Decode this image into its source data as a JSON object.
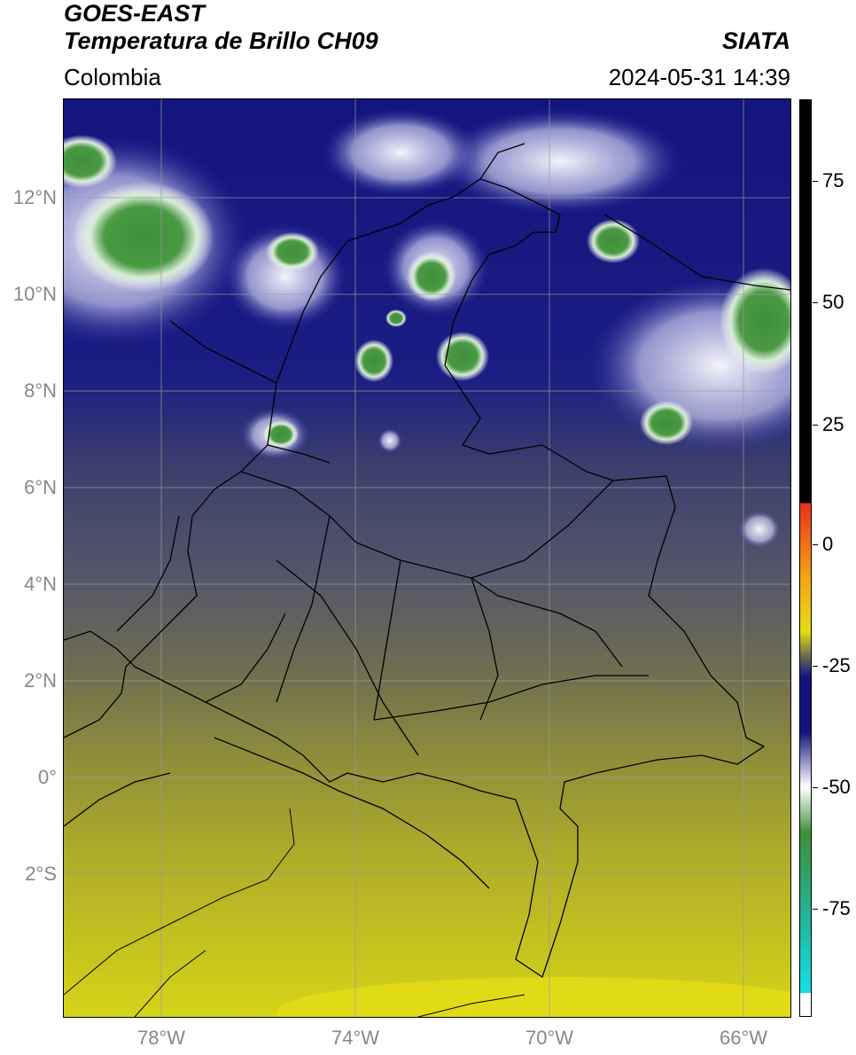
{
  "header": {
    "satellite": "GOES-EAST",
    "product": "Temperatura de Brillo CH09",
    "region": "Colombia",
    "source": "SIATA",
    "datetime": "2024-05-31 14:39"
  },
  "axes": {
    "lat_labels": [
      "12°N",
      "10°N",
      "8°N",
      "6°N",
      "4°N",
      "2°N",
      "0°",
      "2°S"
    ],
    "lon_labels": [
      "78°W",
      "74°W",
      "70°W",
      "66°W"
    ]
  },
  "colorbar": {
    "ticks": [
      "75",
      "50",
      "25",
      "0",
      "-25",
      "-50",
      "-75"
    ],
    "colors": {
      "black": "#000000",
      "red": "#e8321c",
      "orange": "#f4a31a",
      "yellow": "#e3dd16",
      "olive": "#8a8a3a",
      "slate": "#4a4c66",
      "navy": "#14147e",
      "white": "#ffffff",
      "green": "#3f8f3a",
      "teal": "#21b8a0",
      "cyan": "#14e0e6"
    }
  },
  "map": {
    "lon_range": [
      -80,
      -65
    ],
    "lat_range": [
      -5,
      14
    ]
  }
}
